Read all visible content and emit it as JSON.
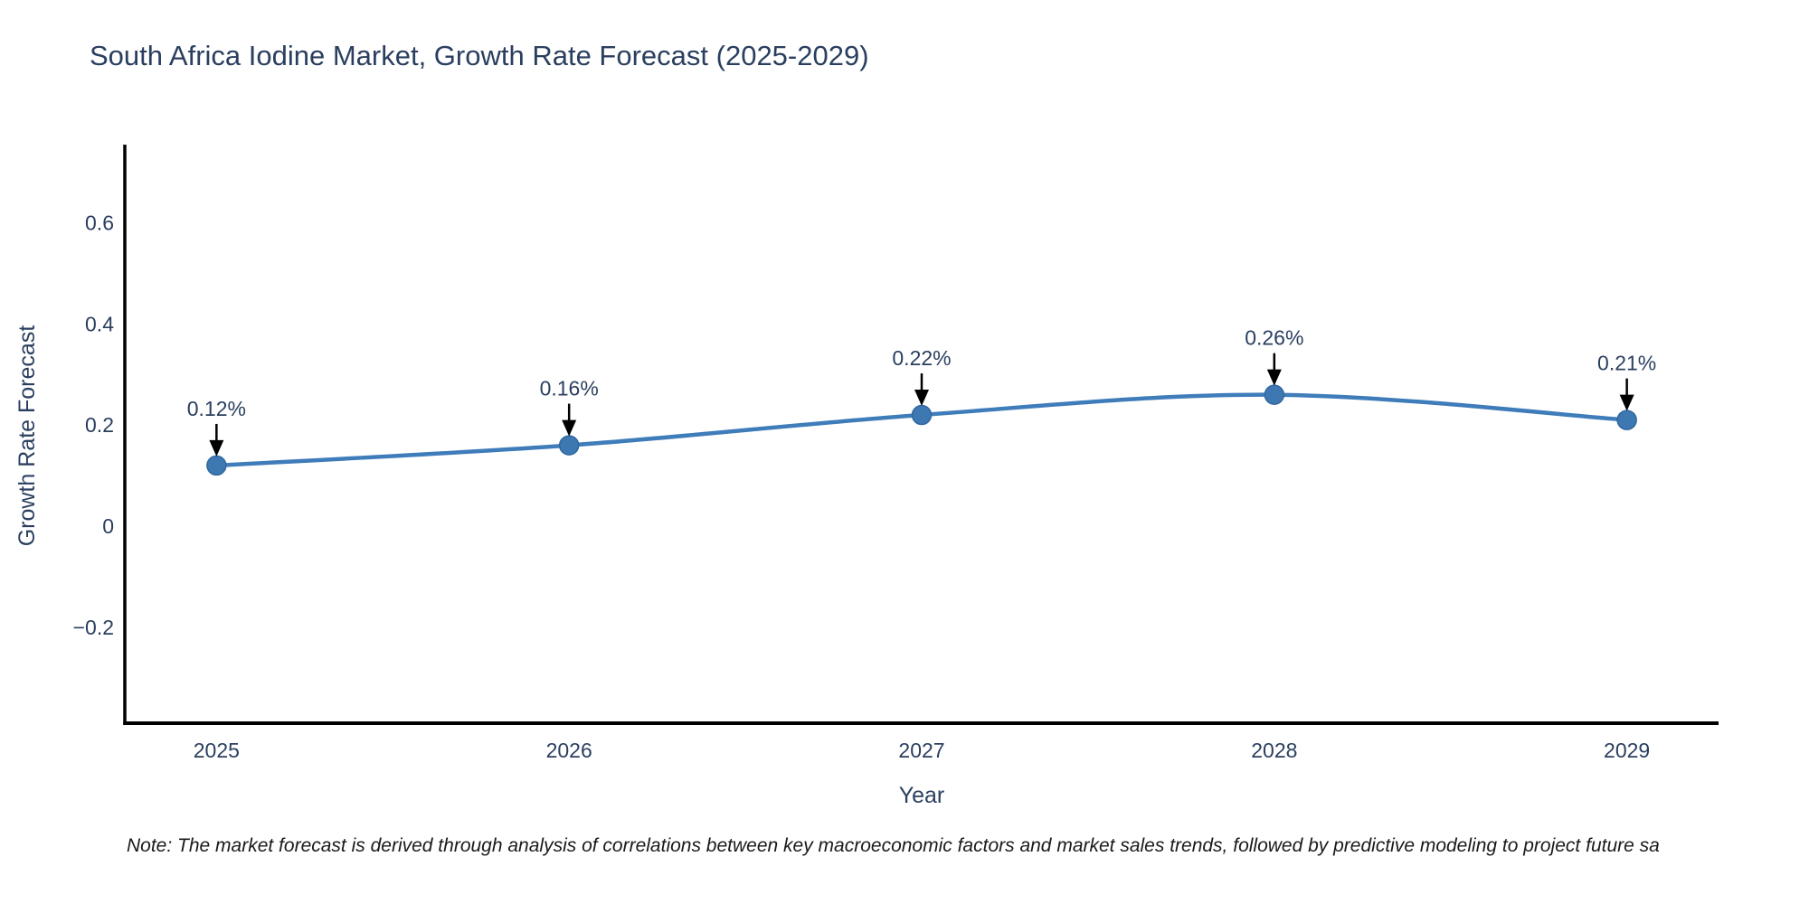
{
  "title": "South Africa Iodine Market, Growth Rate Forecast (2025-2029)",
  "note": "Note: The market forecast is derived through analysis of correlations between key macroeconomic factors and market sales trends, followed by predictive modeling to project future sa",
  "chart_data": {
    "type": "line",
    "title": "South Africa Iodine Market, Growth Rate Forecast (2025-2029)",
    "x": [
      2025,
      2026,
      2027,
      2028,
      2029
    ],
    "y": [
      0.12,
      0.16,
      0.22,
      0.26,
      0.21
    ],
    "series": [
      {
        "name": "Growth Rate Forecast",
        "values": [
          0.12,
          0.16,
          0.22,
          0.26,
          0.21
        ]
      }
    ],
    "point_labels": [
      "0.12%",
      "0.16%",
      "0.22%",
      "0.26%",
      "0.21%"
    ],
    "xlabel": "Year",
    "ylabel": "Growth Rate Forecast",
    "xtick_labels": [
      "2025",
      "2026",
      "2027",
      "2028",
      "2029"
    ],
    "yticks": [
      -0.2,
      0,
      0.2,
      0.4,
      0.6
    ],
    "ytick_labels": [
      "−0.2",
      "0",
      "0.2",
      "0.4",
      "0.6"
    ],
    "xlim": [
      2024.74,
      2029.26
    ],
    "ylim": [
      -0.39,
      0.755
    ],
    "grid": false,
    "legend": false,
    "curve": "spline",
    "line_color": "#3f7cba",
    "marker_color": "#3d78b3",
    "marker_edge_color": "#33679e",
    "annotation_color": "#000000",
    "axis_color": "#000000",
    "text_color": "#2a3f5f"
  }
}
